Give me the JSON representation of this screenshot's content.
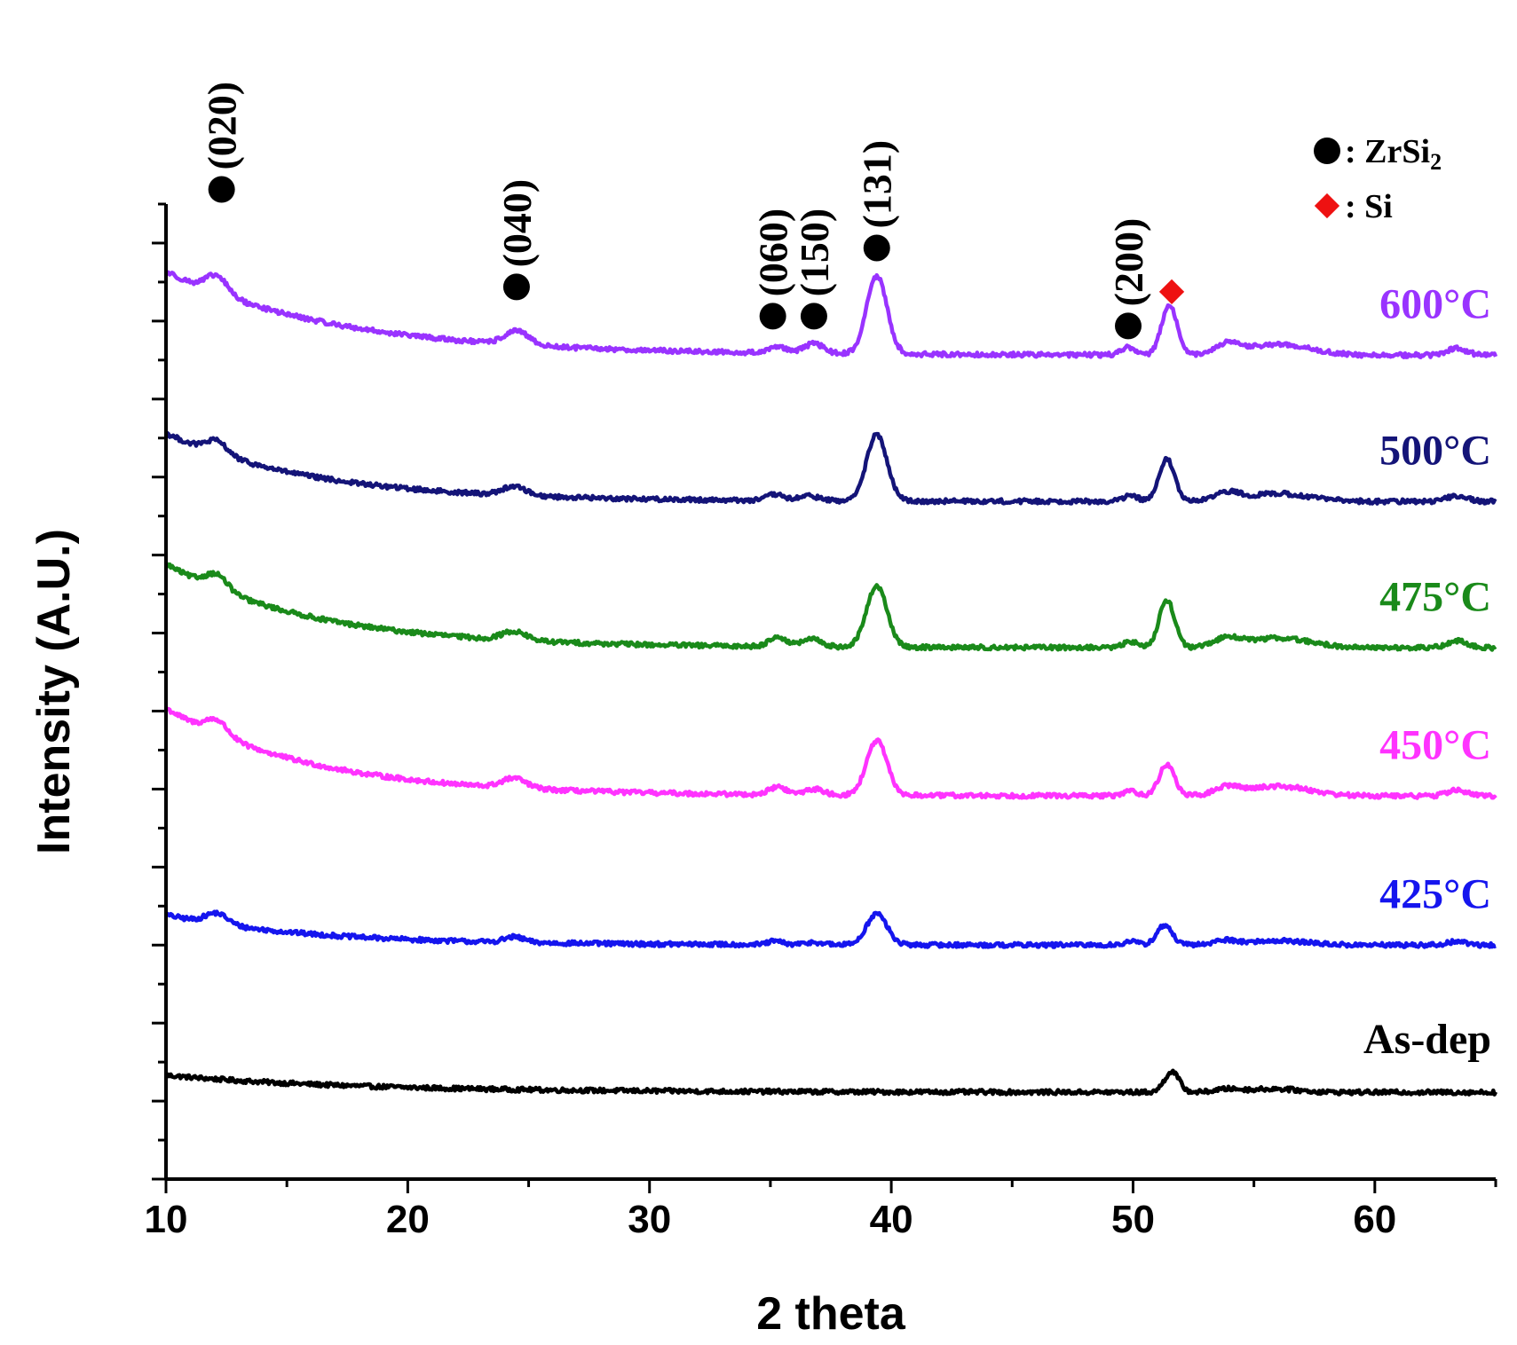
{
  "chart_data": {
    "type": "line",
    "title": "",
    "xlabel": "2 theta",
    "ylabel": "Intensity (A.U.)",
    "xlim": [
      10,
      65
    ],
    "ylim": [
      0,
      100
    ],
    "xticks": [
      {
        "value": 10,
        "label": "10"
      },
      {
        "value": 20,
        "label": "20"
      },
      {
        "value": 30,
        "label": "30"
      },
      {
        "value": 40,
        "label": "40"
      },
      {
        "value": 50,
        "label": "50"
      },
      {
        "value": 60,
        "label": "60"
      }
    ],
    "y_tick_count": 25,
    "series": [
      {
        "name": "As-dep",
        "label": "As-dep",
        "color": "#000000",
        "offset": 8.6,
        "baseline": {
          "a": 0.3,
          "b": 1.75,
          "tau": 8
        },
        "peaks": [
          {
            "x": 51.6,
            "h": 2.1,
            "w": 0.3
          },
          {
            "x": 53.9,
            "h": 0.3,
            "w": 0.5
          },
          {
            "x": 55.8,
            "h": 0.35,
            "w": 1.0
          }
        ]
      },
      {
        "name": "425°C",
        "label": "425°C",
        "color": "#1515ee",
        "offset": 23.5,
        "baseline": {
          "a": 0.5,
          "b": 3.1,
          "tau": 6
        },
        "peaks": [
          {
            "x": 12.1,
            "h": 1.1,
            "w": 0.45
          },
          {
            "x": 24.4,
            "h": 0.55,
            "w": 0.4
          },
          {
            "x": 35.2,
            "h": 0.35,
            "w": 0.3
          },
          {
            "x": 36.8,
            "h": 0.25,
            "w": 0.35
          },
          {
            "x": 39.4,
            "h": 3.2,
            "w": 0.42
          },
          {
            "x": 49.9,
            "h": 0.35,
            "w": 0.3
          },
          {
            "x": 51.3,
            "h": 2.0,
            "w": 0.32
          },
          {
            "x": 53.8,
            "h": 0.45,
            "w": 0.5
          },
          {
            "x": 56.0,
            "h": 0.45,
            "w": 1.2
          },
          {
            "x": 63.4,
            "h": 0.35,
            "w": 0.4
          }
        ]
      },
      {
        "name": "450°C",
        "label": "450°C",
        "color": "#ff33ff",
        "offset": 38.8,
        "baseline": {
          "a": 0.5,
          "b": 9.0,
          "tau": 6
        },
        "peaks": [
          {
            "x": 12.1,
            "h": 1.5,
            "w": 0.45
          },
          {
            "x": 24.4,
            "h": 1.0,
            "w": 0.5
          },
          {
            "x": 35.3,
            "h": 0.8,
            "w": 0.35
          },
          {
            "x": 36.8,
            "h": 0.6,
            "w": 0.4
          },
          {
            "x": 39.4,
            "h": 5.6,
            "w": 0.42
          },
          {
            "x": 49.9,
            "h": 0.5,
            "w": 0.3
          },
          {
            "x": 51.4,
            "h": 3.2,
            "w": 0.32
          },
          {
            "x": 53.9,
            "h": 0.8,
            "w": 0.5
          },
          {
            "x": 56.0,
            "h": 1.0,
            "w": 1.3
          },
          {
            "x": 63.4,
            "h": 0.6,
            "w": 0.4
          }
        ]
      },
      {
        "name": "475°C",
        "label": "475°C",
        "color": "#1a8a1a",
        "offset": 54.0,
        "baseline": {
          "a": 0.5,
          "b": 8.6,
          "tau": 6
        },
        "peaks": [
          {
            "x": 12.1,
            "h": 1.5,
            "w": 0.45
          },
          {
            "x": 24.4,
            "h": 0.9,
            "w": 0.5
          },
          {
            "x": 35.3,
            "h": 1.0,
            "w": 0.35
          },
          {
            "x": 36.7,
            "h": 0.8,
            "w": 0.4
          },
          {
            "x": 39.4,
            "h": 6.3,
            "w": 0.42
          },
          {
            "x": 49.9,
            "h": 0.6,
            "w": 0.3
          },
          {
            "x": 51.4,
            "h": 4.9,
            "w": 0.32
          },
          {
            "x": 53.9,
            "h": 0.9,
            "w": 0.5
          },
          {
            "x": 56.0,
            "h": 1.0,
            "w": 1.3
          },
          {
            "x": 63.4,
            "h": 0.7,
            "w": 0.4
          }
        ]
      },
      {
        "name": "500°C",
        "label": "500°C",
        "color": "#141478",
        "offset": 69.0,
        "baseline": {
          "a": 0.5,
          "b": 7.0,
          "tau": 6
        },
        "peaks": [
          {
            "x": 12.1,
            "h": 1.3,
            "w": 0.45
          },
          {
            "x": 24.4,
            "h": 0.9,
            "w": 0.5
          },
          {
            "x": 35.2,
            "h": 0.6,
            "w": 0.35
          },
          {
            "x": 36.6,
            "h": 0.5,
            "w": 0.4
          },
          {
            "x": 39.4,
            "h": 6.8,
            "w": 0.42
          },
          {
            "x": 49.9,
            "h": 0.6,
            "w": 0.3
          },
          {
            "x": 51.4,
            "h": 4.3,
            "w": 0.32
          },
          {
            "x": 53.9,
            "h": 0.8,
            "w": 0.5
          },
          {
            "x": 56.0,
            "h": 0.8,
            "w": 1.3
          },
          {
            "x": 63.4,
            "h": 0.6,
            "w": 0.4
          }
        ]
      },
      {
        "name": "600°C",
        "label": "600°C",
        "color": "#9933ff",
        "offset": 84.0,
        "baseline": {
          "a": 0.5,
          "b": 8.6,
          "tau": 7
        },
        "peaks": [
          {
            "x": 12.1,
            "h": 1.8,
            "w": 0.45
          },
          {
            "x": 24.5,
            "h": 1.4,
            "w": 0.5
          },
          {
            "x": 35.3,
            "h": 0.7,
            "w": 0.35
          },
          {
            "x": 36.8,
            "h": 1.0,
            "w": 0.4
          },
          {
            "x": 39.4,
            "h": 8.0,
            "w": 0.42
          },
          {
            "x": 49.8,
            "h": 0.8,
            "w": 0.3
          },
          {
            "x": 51.5,
            "h": 5.1,
            "w": 0.32
          },
          {
            "x": 53.9,
            "h": 1.0,
            "w": 0.5
          },
          {
            "x": 56.0,
            "h": 1.1,
            "w": 1.3
          },
          {
            "x": 63.4,
            "h": 0.7,
            "w": 0.4
          }
        ]
      }
    ],
    "peak_annotations": [
      {
        "label": "(020)",
        "x": 12.3,
        "y": 101.5,
        "marker": "circle"
      },
      {
        "label": "(040)",
        "x": 24.5,
        "y": 91.5,
        "marker": "circle"
      },
      {
        "label": "(060)",
        "x": 35.1,
        "y": 88.5,
        "marker": "circle"
      },
      {
        "label": "(150)",
        "x": 36.8,
        "y": 88.5,
        "marker": "circle"
      },
      {
        "label": "(131)",
        "x": 39.4,
        "y": 95.5,
        "marker": "circle"
      },
      {
        "label": "(200)",
        "x": 49.8,
        "y": 87.5,
        "marker": "circle"
      },
      {
        "label": "",
        "x": 51.6,
        "y": 91.0,
        "marker": "diamond"
      }
    ],
    "legend": [
      {
        "marker": "circle",
        "label": ": ZrSi",
        "subscript": "2",
        "color": "#000000"
      },
      {
        "marker": "diamond",
        "label": ": Si",
        "subscript": "",
        "color": "#ee1111"
      }
    ],
    "legend_position": "top-right"
  }
}
